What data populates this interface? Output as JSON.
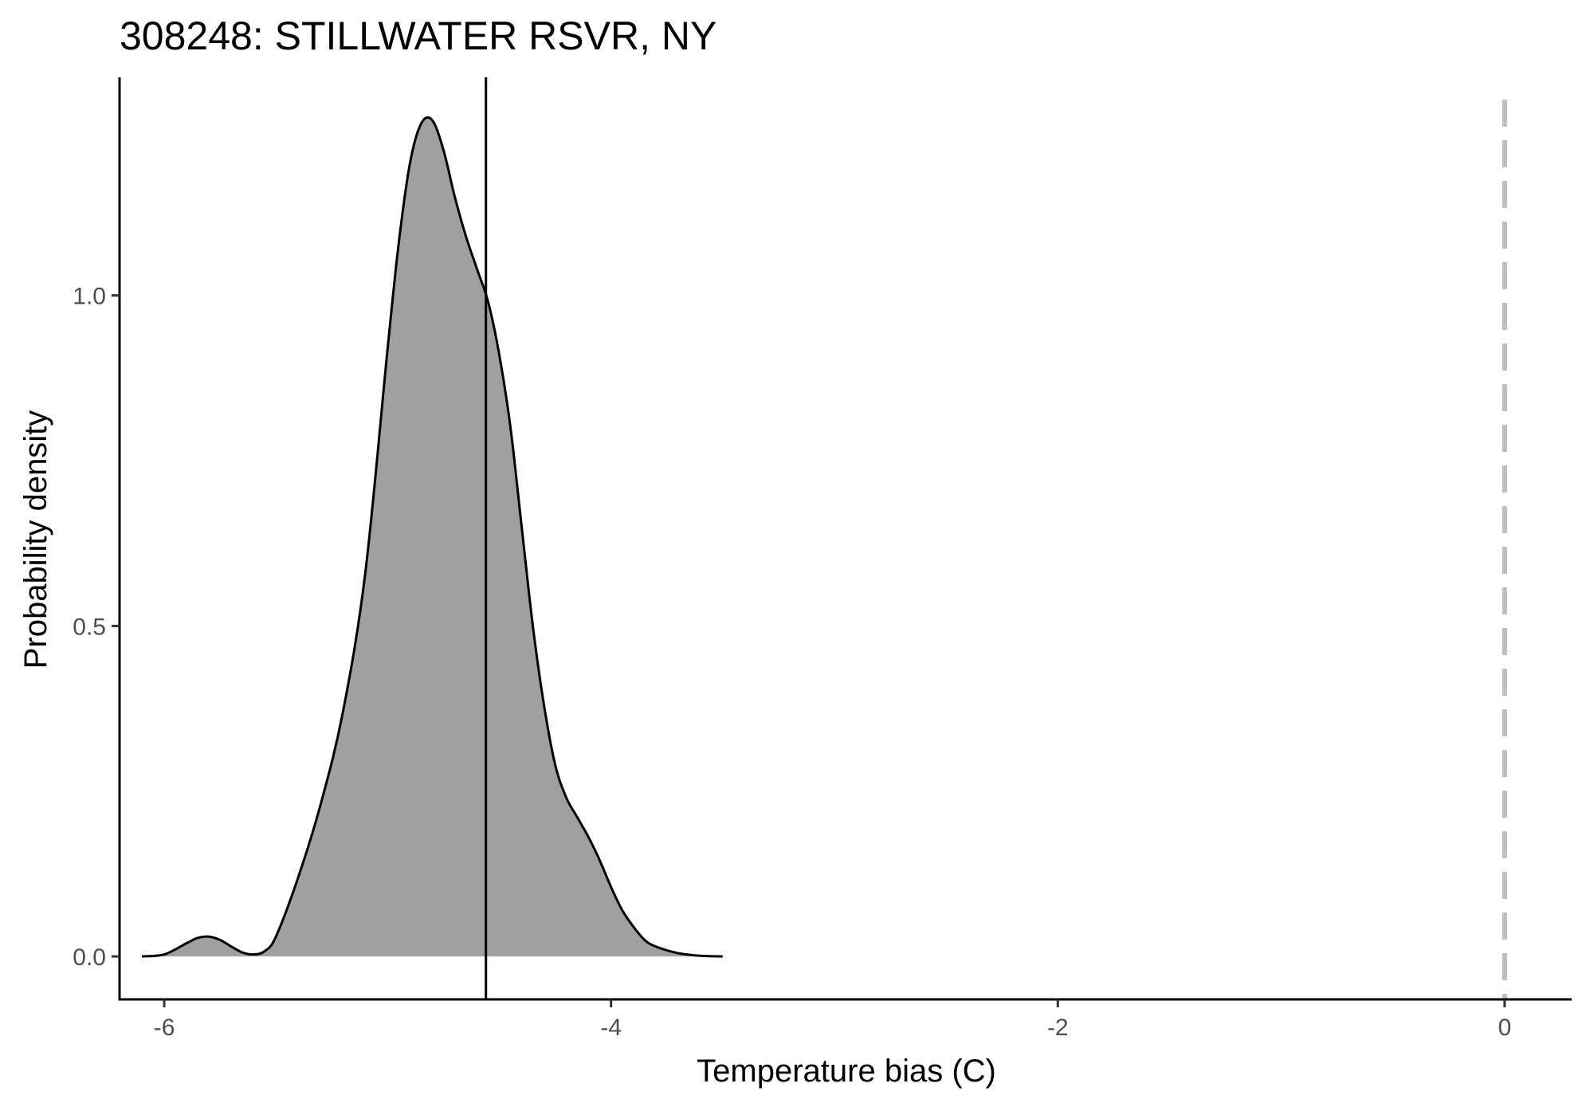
{
  "chart_data": {
    "type": "area",
    "title": "308248: STILLWATER RSVR, NY",
    "xlabel": "Temperature bias (C)",
    "ylabel": "Probability density",
    "xlim": [
      -6.2,
      0.3
    ],
    "ylim": [
      -0.065,
      1.33
    ],
    "x_ticks": [
      -6,
      -4,
      -2,
      0
    ],
    "x_tick_labels": [
      "-6",
      "-4",
      "-2",
      "0"
    ],
    "y_ticks": [
      0.0,
      0.5,
      1.0
    ],
    "y_tick_labels": [
      "0.0",
      "0.5",
      "1.0"
    ],
    "grid": false,
    "legend": "none",
    "density_fill_color": "#a0a0a0",
    "density_line_color": "#000000",
    "reference_line": {
      "x": -4.56,
      "color": "#000000",
      "style": "solid"
    },
    "zero_line": {
      "x": 0,
      "color": "#bebebe",
      "style": "dashed"
    },
    "x": [
      -6.1,
      -6.0,
      -5.9,
      -5.85,
      -5.8,
      -5.75,
      -5.7,
      -5.65,
      -5.6,
      -5.55,
      -5.5,
      -5.4,
      -5.3,
      -5.2,
      -5.1,
      -5.0,
      -4.95,
      -4.9,
      -4.85,
      -4.8,
      -4.75,
      -4.7,
      -4.65,
      -4.6,
      -4.55,
      -4.5,
      -4.45,
      -4.4,
      -4.35,
      -4.3,
      -4.25,
      -4.2,
      -4.15,
      -4.1,
      -4.05,
      -4.0,
      -3.95,
      -3.9,
      -3.85,
      -3.8,
      -3.7,
      -3.6,
      -3.5
    ],
    "y": [
      0.0,
      0.003,
      0.02,
      0.028,
      0.03,
      0.025,
      0.015,
      0.006,
      0.003,
      0.008,
      0.03,
      0.12,
      0.23,
      0.37,
      0.58,
      0.92,
      1.08,
      1.2,
      1.26,
      1.265,
      1.22,
      1.15,
      1.09,
      1.04,
      0.99,
      0.91,
      0.8,
      0.65,
      0.5,
      0.38,
      0.29,
      0.24,
      0.21,
      0.18,
      0.145,
      0.105,
      0.07,
      0.045,
      0.025,
      0.015,
      0.005,
      0.001,
      0.0
    ]
  }
}
